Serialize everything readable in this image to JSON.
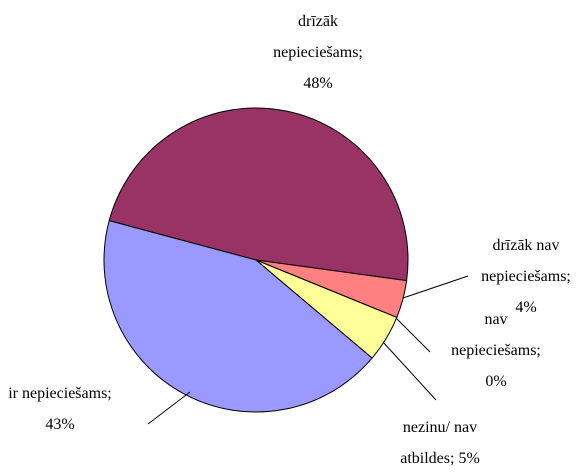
{
  "chart_data": {
    "type": "pie",
    "categories": [
      "drīzāk nepieciešams;",
      "drīzāk nav nepieciešams;",
      "nav nepieciešams;",
      "nezinu/ nav atbildes;",
      "ir nepieciešams;"
    ],
    "values": [
      48,
      4,
      0,
      5,
      43
    ],
    "value_labels": [
      "48%",
      "4%",
      "0%",
      "5%",
      "43%"
    ],
    "colors": [
      "#993366",
      "#FF8080",
      "#CCFFFF",
      "#FFFF99",
      "#9999FF"
    ]
  }
}
